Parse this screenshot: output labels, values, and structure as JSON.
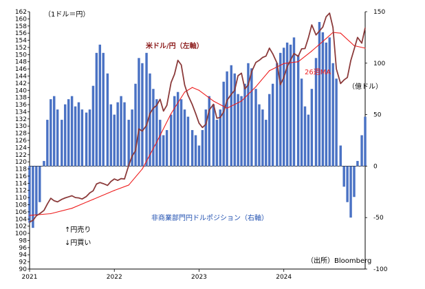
{
  "chart_data": {
    "type": "combo",
    "left_unit_label": "（1ドル＝円）",
    "right_unit_label": "（億ドル）",
    "left_axis": {
      "min": 90,
      "max": 162,
      "step": 2
    },
    "right_axis": {
      "min": -100,
      "max": 150,
      "step": 50
    },
    "x_axis": {
      "start": 2021.0,
      "end": 2024.96,
      "labels": [
        "2021",
        "2022",
        "2023",
        "2024"
      ]
    },
    "annotations": {
      "yen_sell": "↑円売り",
      "yen_buy": "↓円買い",
      "source": "（出所）Bloomberg"
    },
    "colors": {
      "usdjpy": "#8b3a3a",
      "ma": "#ee1c1c",
      "bars": "#4a72c4",
      "axis": "#000000"
    },
    "series": [
      {
        "name": "米ドル/円（左軸）",
        "axis": "left",
        "kind": "line",
        "x": [
          2021.0,
          2021.04,
          2021.08,
          2021.12,
          2021.17,
          2021.21,
          2021.25,
          2021.29,
          2021.33,
          2021.38,
          2021.42,
          2021.46,
          2021.5,
          2021.54,
          2021.58,
          2021.62,
          2021.67,
          2021.71,
          2021.75,
          2021.79,
          2021.83,
          2021.87,
          2021.92,
          2021.96,
          2022.0,
          2022.04,
          2022.08,
          2022.12,
          2022.17,
          2022.21,
          2022.25,
          2022.29,
          2022.33,
          2022.38,
          2022.42,
          2022.46,
          2022.5,
          2022.54,
          2022.58,
          2022.62,
          2022.67,
          2022.71,
          2022.75,
          2022.79,
          2022.83,
          2022.87,
          2022.92,
          2022.96,
          2023.0,
          2023.04,
          2023.08,
          2023.12,
          2023.17,
          2023.21,
          2023.25,
          2023.29,
          2023.33,
          2023.38,
          2023.42,
          2023.46,
          2023.5,
          2023.54,
          2023.58,
          2023.62,
          2023.67,
          2023.71,
          2023.75,
          2023.79,
          2023.83,
          2023.87,
          2023.92,
          2023.96,
          2024.0,
          2024.04,
          2024.08,
          2024.12,
          2024.17,
          2024.21,
          2024.25,
          2024.29,
          2024.33,
          2024.38,
          2024.42,
          2024.46,
          2024.5,
          2024.54,
          2024.58,
          2024.62,
          2024.67,
          2024.71,
          2024.75,
          2024.79,
          2024.83,
          2024.87,
          2024.92,
          2024.96
        ],
        "values": [
          103.2,
          103.6,
          104.9,
          105.5,
          106.4,
          108.2,
          109.8,
          109.1,
          108.8,
          109.5,
          109.9,
          110.2,
          110.5,
          110.0,
          109.9,
          109.6,
          110.3,
          111.3,
          111.9,
          113.8,
          114.2,
          113.9,
          113.4,
          114.5,
          115.2,
          114.8,
          115.3,
          115.2,
          119.0,
          121.6,
          123.1,
          129.2,
          128.6,
          130.2,
          133.5,
          135.0,
          135.8,
          137.5,
          134.2,
          135.8,
          142.2,
          144.5,
          148.4,
          147.1,
          141.5,
          138.6,
          136.0,
          133.5,
          130.8,
          129.6,
          130.5,
          134.5,
          136.1,
          132.2,
          132.4,
          134.0,
          137.2,
          138.9,
          140.0,
          144.1,
          144.8,
          140.4,
          141.5,
          145.2,
          147.8,
          148.4,
          149.2,
          149.6,
          151.8,
          150.2,
          147.6,
          141.6,
          143.6,
          146.6,
          148.5,
          150.3,
          149.5,
          151.6,
          151.7,
          154.7,
          158.3,
          155.5,
          156.6,
          157.7,
          160.6,
          161.6,
          157.6,
          146.0,
          141.9,
          142.9,
          143.6,
          148.3,
          151.5,
          154.8,
          153.2,
          157.5
        ]
      },
      {
        "name": "26週MA",
        "axis": "left",
        "kind": "line",
        "x": [
          2021.0,
          2021.25,
          2021.5,
          2021.75,
          2022.0,
          2022.17,
          2022.33,
          2022.5,
          2022.67,
          2022.83,
          2022.92,
          2023.0,
          2023.17,
          2023.33,
          2023.5,
          2023.67,
          2023.83,
          2024.0,
          2024.17,
          2024.33,
          2024.5,
          2024.58,
          2024.67,
          2024.83,
          2024.96
        ],
        "values": [
          105.0,
          105.5,
          107.0,
          109.5,
          112.0,
          113.5,
          118.0,
          125.5,
          133.5,
          139.5,
          140.8,
          140.0,
          137.0,
          135.0,
          137.0,
          141.0,
          145.5,
          147.5,
          148.0,
          151.0,
          154.5,
          156.2,
          156.0,
          152.5,
          151.8
        ]
      },
      {
        "name": "非商業部門円ドルポジション（右軸）",
        "axis": "right",
        "kind": "bar",
        "x": [
          2021.0,
          2021.04,
          2021.08,
          2021.12,
          2021.17,
          2021.21,
          2021.25,
          2021.29,
          2021.33,
          2021.38,
          2021.42,
          2021.46,
          2021.5,
          2021.54,
          2021.58,
          2021.62,
          2021.67,
          2021.71,
          2021.75,
          2021.79,
          2021.83,
          2021.87,
          2021.92,
          2021.96,
          2022.0,
          2022.04,
          2022.08,
          2022.12,
          2022.17,
          2022.21,
          2022.25,
          2022.29,
          2022.33,
          2022.38,
          2022.42,
          2022.46,
          2022.5,
          2022.54,
          2022.58,
          2022.62,
          2022.67,
          2022.71,
          2022.75,
          2022.79,
          2022.83,
          2022.87,
          2022.92,
          2022.96,
          2023.0,
          2023.04,
          2023.08,
          2023.12,
          2023.17,
          2023.21,
          2023.25,
          2023.29,
          2023.33,
          2023.38,
          2023.42,
          2023.46,
          2023.5,
          2023.54,
          2023.58,
          2023.62,
          2023.67,
          2023.71,
          2023.75,
          2023.79,
          2023.83,
          2023.87,
          2023.92,
          2023.96,
          2024.0,
          2024.04,
          2024.08,
          2024.12,
          2024.17,
          2024.21,
          2024.25,
          2024.29,
          2024.33,
          2024.38,
          2024.42,
          2024.46,
          2024.5,
          2024.54,
          2024.58,
          2024.62,
          2024.67,
          2024.71,
          2024.75,
          2024.79,
          2024.83,
          2024.87,
          2024.92,
          2024.96
        ],
        "values": [
          -55,
          -60,
          -48,
          -35,
          5,
          45,
          65,
          68,
          55,
          45,
          60,
          65,
          68,
          58,
          62,
          55,
          52,
          55,
          78,
          110,
          118,
          110,
          90,
          60,
          50,
          62,
          68,
          62,
          45,
          55,
          80,
          105,
          100,
          110,
          90,
          75,
          65,
          45,
          30,
          35,
          50,
          68,
          72,
          65,
          55,
          48,
          35,
          30,
          20,
          35,
          55,
          68,
          60,
          45,
          55,
          82,
          92,
          98,
          90,
          70,
          68,
          80,
          100,
          95,
          75,
          60,
          55,
          45,
          70,
          80,
          100,
          110,
          115,
          120,
          118,
          125,
          108,
          85,
          58,
          50,
          75,
          105,
          140,
          130,
          120,
          125,
          100,
          85,
          20,
          -20,
          -35,
          -50,
          -30,
          5,
          30,
          48
        ]
      }
    ]
  }
}
